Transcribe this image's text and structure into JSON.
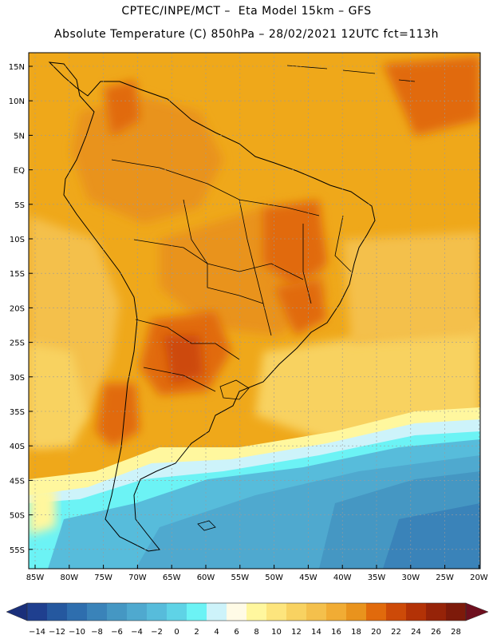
{
  "header": {
    "line1": "CPTEC/INPE/MCT –  Eta Model 15km – GFS",
    "line2": "Absolute Temperature (C) 850hPa – 28/02/2021 12UTC fct=113h"
  },
  "map": {
    "lat_labels": [
      "15N",
      "10N",
      "5N",
      "EQ",
      "5S",
      "10S",
      "15S",
      "20S",
      "25S",
      "30S",
      "35S",
      "40S",
      "45S",
      "50S",
      "55S"
    ],
    "lon_labels": [
      "85W",
      "80W",
      "75W",
      "70W",
      "65W",
      "60W",
      "55W",
      "50W",
      "45W",
      "40W",
      "35W",
      "30W",
      "25W",
      "20W"
    ]
  },
  "colorbar": {
    "labels": [
      "-14",
      "-12",
      "-10",
      "-8",
      "-6",
      "-4",
      "-2",
      "0",
      "2",
      "4",
      "6",
      "8",
      "10",
      "12",
      "14",
      "16",
      "18",
      "20",
      "22",
      "24",
      "26",
      "28"
    ],
    "colors": [
      "#1f3f8f",
      "#25589f",
      "#2e6eae",
      "#3a83b9",
      "#4597c3",
      "#4fa9cf",
      "#57bcdb",
      "#5fd3e6",
      "#6cf3f5",
      "#cdf3fa",
      "#fffbe6",
      "#fff79e",
      "#fde57d",
      "#f8d261",
      "#f4c04c",
      "#f1ac34",
      "#e9931d",
      "#e16a0c",
      "#cd4a08",
      "#b33206",
      "#962308",
      "#7d1a0a"
    ],
    "arrow_left_color": "#1a2f7a",
    "arrow_right_color": "#6e0f1e"
  }
}
